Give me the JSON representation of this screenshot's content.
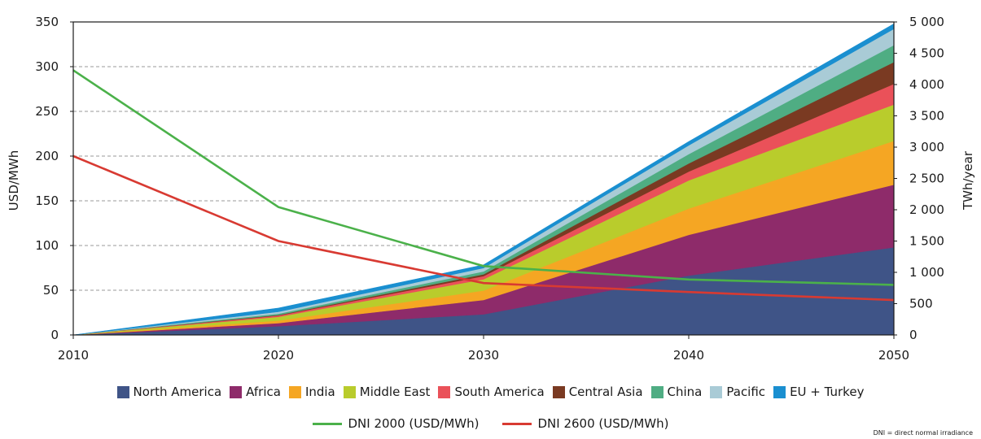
{
  "chart_data": {
    "type": "area",
    "x": [
      2010,
      2020,
      2030,
      2040,
      2050
    ],
    "xlim": [
      2010,
      2050
    ],
    "ylabel": "USD/MWh",
    "ylim": [
      0,
      350
    ],
    "yticks": [
      0,
      50,
      100,
      150,
      200,
      250,
      300,
      350
    ],
    "y2label": "TWh/year",
    "y2lim": [
      0,
      5000
    ],
    "y2ticks": [
      "0",
      "500",
      "1 000",
      "1 500",
      "2 000",
      "2 500",
      "3 000",
      "3 500",
      "4 000",
      "4 500",
      "5 000"
    ],
    "grid": true,
    "legend_placement": "bottom",
    "stack_series": [
      {
        "name": "North America",
        "color": "#3f5487",
        "values": [
          0,
          140,
          330,
          950,
          1400
        ]
      },
      {
        "name": "Africa",
        "color": "#8e2b6a",
        "values": [
          0,
          50,
          230,
          650,
          1000
        ]
      },
      {
        "name": "India",
        "color": "#f5a623",
        "values": [
          0,
          40,
          150,
          420,
          700
        ]
      },
      {
        "name": "Middle East",
        "color": "#b9cc2c",
        "values": [
          0,
          60,
          180,
          450,
          580
        ]
      },
      {
        "name": "South America",
        "color": "#ea5159",
        "values": [
          0,
          20,
          50,
          140,
          330
        ]
      },
      {
        "name": "Central Asia",
        "color": "#7a3a22",
        "values": [
          0,
          10,
          30,
          130,
          350
        ]
      },
      {
        "name": "China",
        "color": "#4fad83",
        "values": [
          0,
          20,
          45,
          150,
          270
        ]
      },
      {
        "name": "Pacific",
        "color": "#a9cbd6",
        "values": [
          0,
          30,
          55,
          140,
          260
        ]
      },
      {
        "name": "EU + Turkey",
        "color": "#1a8fd0",
        "values": [
          0,
          60,
          50,
          60,
          80
        ]
      }
    ],
    "line_series": [
      {
        "name": "DNI 2000 (USD/MWh)",
        "color": "#4bb14a",
        "values": [
          296,
          143,
          77,
          62,
          56
        ]
      },
      {
        "name": "DNI 2600 (USD/MWh)",
        "color": "#d83a32",
        "values": [
          200,
          105,
          58,
          48,
          39
        ]
      }
    ]
  },
  "footnote": "DNI = direct normal irradiance"
}
